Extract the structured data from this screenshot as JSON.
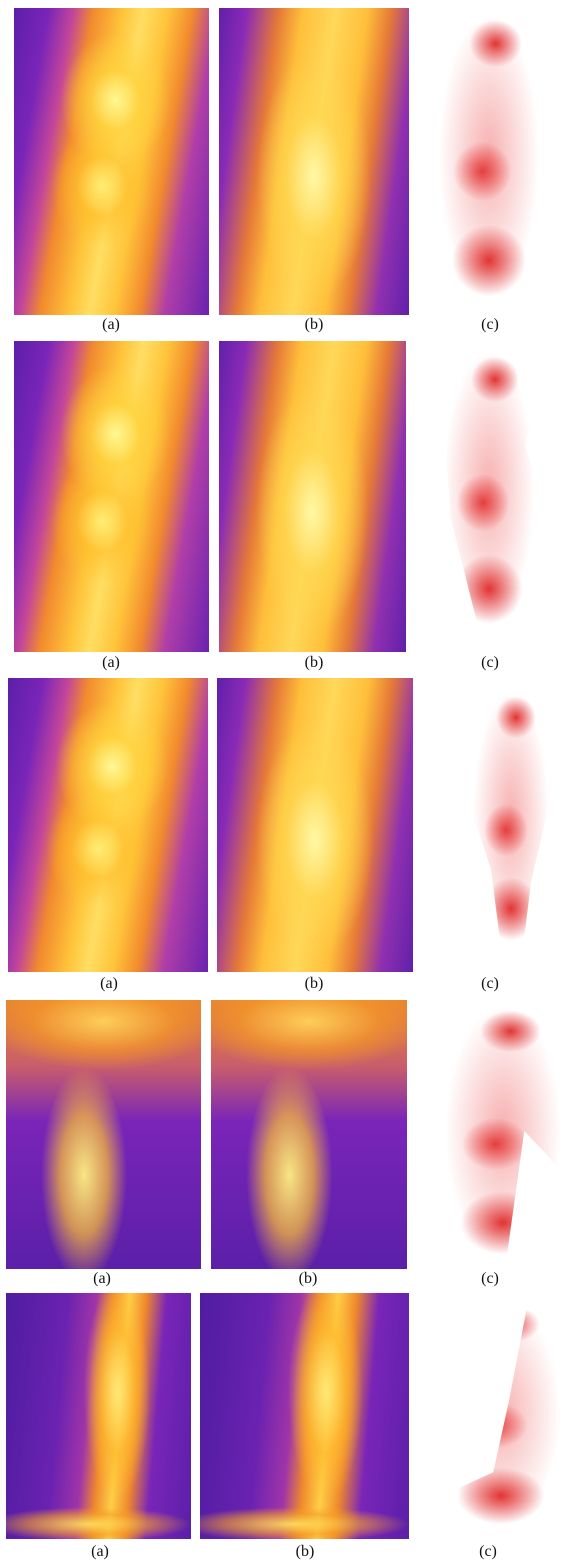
{
  "rows": [
    {
      "a": "(a)",
      "b": "(b)",
      "c": "(c)"
    },
    {
      "a": "(a)",
      "b": "(b)",
      "c": "(c)"
    },
    {
      "a": "(a)",
      "b": "(b)",
      "c": "(c)"
    },
    {
      "a": "(a)",
      "b": "(b)",
      "c": "(c)"
    },
    {
      "a": "(a)",
      "b": "(b)",
      "c": "(c)"
    }
  ]
}
